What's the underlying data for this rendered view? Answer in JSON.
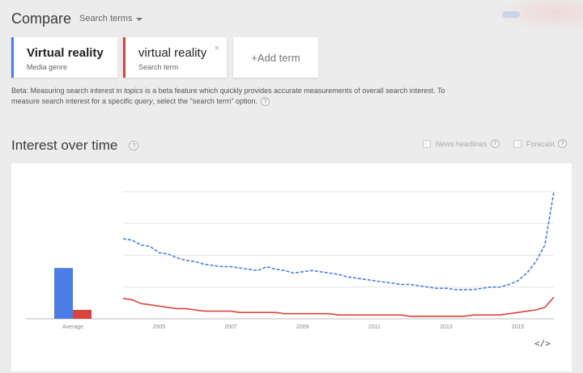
{
  "header": {
    "title": "Compare",
    "search_terms_label": "Search terms"
  },
  "terms": [
    {
      "label": "Virtual reality",
      "sub": "Media genre",
      "color": "#4a7de8"
    },
    {
      "label": "virtual reality",
      "sub": "Search term",
      "color": "#d9453c",
      "close": "×"
    }
  ],
  "add_term_label": "+Add term",
  "beta": {
    "prefix": "Beta: Measuring search interest in ",
    "topics": "topics",
    "middle": " is a beta feature which quickly provides accurate measurements of overall search interest. To measure search interest for a specific ",
    "query": "query",
    "suffix": ", select the \"search term\" option.",
    "help": "?"
  },
  "section": {
    "title": "Interest over time",
    "help": "?",
    "news_headlines": "News headlines",
    "forecast": "Forecast",
    "opt_help": "?"
  },
  "embed_label": "</>",
  "chart_data": {
    "type": "line",
    "x_ticks": [
      "2005",
      "2007",
      "2009",
      "2011",
      "2013",
      "2015"
    ],
    "x_range": [
      2004.0,
      2016.0
    ],
    "ylim": [
      0,
      100
    ],
    "grid": true,
    "average": {
      "label": "Average",
      "values": [
        {
          "name": "Virtual reality",
          "value": 40,
          "color": "#4a7de8"
        },
        {
          "name": "virtual reality",
          "value": 7,
          "color": "#d9453c"
        }
      ]
    },
    "series": [
      {
        "name": "Virtual reality",
        "color": "#4a7de8",
        "style": "dashed",
        "points": [
          [
            2004.0,
            63
          ],
          [
            2004.25,
            62
          ],
          [
            2004.5,
            58
          ],
          [
            2004.75,
            57
          ],
          [
            2005.0,
            52
          ],
          [
            2005.25,
            51
          ],
          [
            2005.5,
            48
          ],
          [
            2005.75,
            46
          ],
          [
            2006.0,
            45
          ],
          [
            2006.25,
            43
          ],
          [
            2006.5,
            42
          ],
          [
            2006.75,
            41
          ],
          [
            2007.0,
            41
          ],
          [
            2007.25,
            40
          ],
          [
            2007.5,
            39
          ],
          [
            2007.75,
            38
          ],
          [
            2008.0,
            41
          ],
          [
            2008.25,
            39
          ],
          [
            2008.5,
            38
          ],
          [
            2008.75,
            36
          ],
          [
            2009.0,
            37
          ],
          [
            2009.25,
            38
          ],
          [
            2009.5,
            37
          ],
          [
            2009.75,
            36
          ],
          [
            2010.0,
            35
          ],
          [
            2010.25,
            33
          ],
          [
            2010.5,
            32
          ],
          [
            2010.75,
            31
          ],
          [
            2011.0,
            30
          ],
          [
            2011.25,
            29
          ],
          [
            2011.5,
            28
          ],
          [
            2011.75,
            27
          ],
          [
            2012.0,
            27
          ],
          [
            2012.25,
            26
          ],
          [
            2012.5,
            25
          ],
          [
            2012.75,
            24
          ],
          [
            2013.0,
            24
          ],
          [
            2013.25,
            23
          ],
          [
            2013.5,
            23
          ],
          [
            2013.75,
            23
          ],
          [
            2014.0,
            24
          ],
          [
            2014.25,
            25
          ],
          [
            2014.5,
            25
          ],
          [
            2014.75,
            27
          ],
          [
            2015.0,
            30
          ],
          [
            2015.25,
            36
          ],
          [
            2015.5,
            45
          ],
          [
            2015.75,
            58
          ],
          [
            2016.0,
            100
          ]
        ]
      },
      {
        "name": "virtual reality",
        "color": "#d9453c",
        "style": "solid",
        "points": [
          [
            2004.0,
            16
          ],
          [
            2004.25,
            15
          ],
          [
            2004.5,
            12
          ],
          [
            2004.75,
            11
          ],
          [
            2005.0,
            10
          ],
          [
            2005.25,
            9
          ],
          [
            2005.5,
            8
          ],
          [
            2005.75,
            8
          ],
          [
            2006.0,
            7
          ],
          [
            2006.25,
            6
          ],
          [
            2006.5,
            6
          ],
          [
            2006.75,
            6
          ],
          [
            2007.0,
            6
          ],
          [
            2007.25,
            5
          ],
          [
            2007.5,
            5
          ],
          [
            2007.75,
            5
          ],
          [
            2008.0,
            5
          ],
          [
            2008.25,
            5
          ],
          [
            2008.5,
            4
          ],
          [
            2008.75,
            4
          ],
          [
            2009.0,
            4
          ],
          [
            2009.25,
            4
          ],
          [
            2009.5,
            4
          ],
          [
            2009.75,
            4
          ],
          [
            2010.0,
            3
          ],
          [
            2010.25,
            3
          ],
          [
            2010.5,
            3
          ],
          [
            2010.75,
            3
          ],
          [
            2011.0,
            3
          ],
          [
            2011.25,
            3
          ],
          [
            2011.5,
            3
          ],
          [
            2011.75,
            3
          ],
          [
            2012.0,
            2
          ],
          [
            2012.25,
            2
          ],
          [
            2012.5,
            2
          ],
          [
            2012.75,
            2
          ],
          [
            2013.0,
            2
          ],
          [
            2013.25,
            2
          ],
          [
            2013.5,
            2
          ],
          [
            2013.75,
            3
          ],
          [
            2014.0,
            3
          ],
          [
            2014.25,
            3
          ],
          [
            2014.5,
            3
          ],
          [
            2014.75,
            4
          ],
          [
            2015.0,
            5
          ],
          [
            2015.25,
            6
          ],
          [
            2015.5,
            7
          ],
          [
            2015.75,
            9
          ],
          [
            2016.0,
            17
          ]
        ]
      }
    ]
  }
}
